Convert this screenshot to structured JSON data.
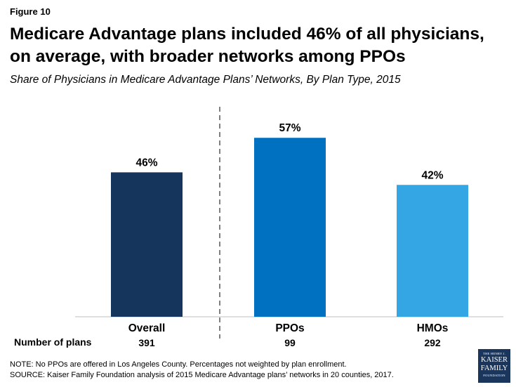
{
  "figure_label": "Figure 10",
  "title": "Medicare Advantage plans included 46% of all physicians, on average, with broader networks among PPOs",
  "subtitle": "Share of Physicians in Medicare Advantage Plans’ Networks, By Plan Type, 2015",
  "colors": {
    "overall": "#15355d",
    "ppos": "#0070c0",
    "hmos": "#35a6e4",
    "divider": "#808080",
    "axis": "#bfbfbf"
  },
  "chart_data": {
    "type": "bar",
    "title": "Share of Physicians in Medicare Advantage Plans’ Networks, By Plan Type, 2015",
    "categories": [
      "Overall",
      "PPOs",
      "HMOs"
    ],
    "values": [
      46,
      57,
      42
    ],
    "value_labels": [
      "46%",
      "57%",
      "42%"
    ],
    "number_of_plans": [
      "391",
      "99",
      "292"
    ],
    "xlabel": "",
    "ylabel": "",
    "ylim": [
      0,
      100
    ],
    "grid": false
  },
  "plans_row_label": "Number of plans",
  "footnotes": {
    "note": "NOTE: No PPOs are offered in Los Angeles County. Percentages not weighted by plan enrollment.",
    "source": "SOURCE: Kaiser Family Foundation analysis of 2015 Medicare Advantage plans’ networks in 20 counties, 2017."
  },
  "logo": {
    "line1": "THE HENRY J.",
    "line2a": "KAISER",
    "line2b": "FAMILY",
    "line3": "FOUNDATION"
  }
}
